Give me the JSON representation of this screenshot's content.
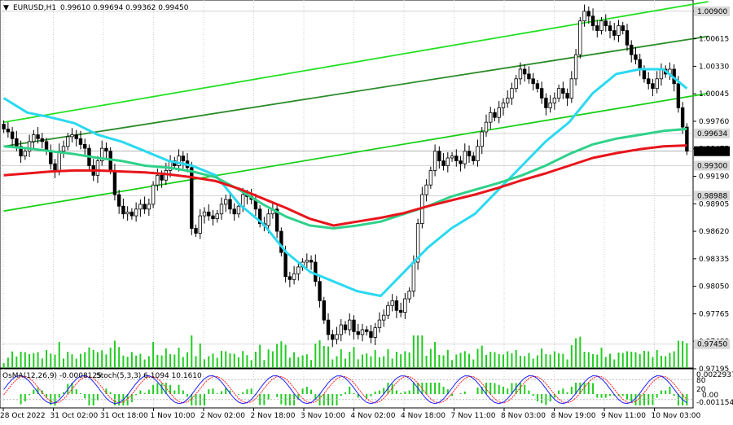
{
  "header": {
    "symbol": "EURUSD,H1",
    "ohlc": "0.99610 0.99694 0.99362 0.99450"
  },
  "indicators": {
    "osma_label": "OsMA(12,26,9) -0.0008125",
    "stoch_label": "Stoch(5,3,3) 6.1094 10.1610",
    "osma_levels": [
      "0.0022937",
      "0.00",
      "-0.001154"
    ],
    "stoch_levels": [
      "80",
      "20"
    ]
  },
  "colors": {
    "candle": "#000000",
    "ema_fast": "#2ad9f0",
    "ema_mid": "#2fd18a",
    "ema_slow": "#e8151b",
    "channel_upper": "#22e022",
    "channel_mid": "#2a8c2a",
    "channel_lower": "#18d018",
    "volume": "#22cc22",
    "stoch_main": "#2020ff",
    "stoch_signal": "#ff2020",
    "price_tag_bg": "#000000",
    "level_tag_bg": "#d8d8d8"
  },
  "chart_data": {
    "type": "candlestick",
    "symbol": "EURUSD",
    "timeframe": "H1",
    "ylim": [
      0.9722,
      1.01
    ],
    "y_ticks": [
      "1.00900",
      "1.00615",
      "1.00330",
      "1.00045",
      "0.99760",
      "0.99475",
      "0.99190",
      "0.98905",
      "0.98620",
      "0.98335",
      "0.98050",
      "0.97765",
      "0.97480",
      "0.97195"
    ],
    "price_tags": [
      {
        "label": "1.00900",
        "value": 1.009,
        "style": "level"
      },
      {
        "label": "0.99634",
        "value": 0.99634,
        "style": "level"
      },
      {
        "label": "0.99450",
        "value": 0.9945,
        "style": "current"
      },
      {
        "label": "0.99300",
        "value": 0.993,
        "style": "level"
      },
      {
        "label": "0.98988",
        "value": 0.98988,
        "style": "level"
      },
      {
        "label": "0.97450",
        "value": 0.9745,
        "style": "level"
      }
    ],
    "x_tick_labels": [
      "28 Oct 2022",
      "31 Oct 02:00",
      "31 Oct 18:00",
      "1 Nov 10:00",
      "2 Nov 02:00",
      "2 Nov 18:00",
      "3 Nov 10:00",
      "4 Nov 02:00",
      "4 Nov 18:00",
      "7 Nov 11:00",
      "8 Nov 03:00",
      "8 Nov 19:00",
      "9 Nov 11:00",
      "10 Nov 03:00"
    ],
    "closes": [
      0.9968,
      0.9965,
      0.9958,
      0.995,
      0.994,
      0.9945,
      0.9955,
      0.9962,
      0.9958,
      0.9955,
      0.9945,
      0.9932,
      0.9925,
      0.9945,
      0.995,
      0.996,
      0.9962,
      0.9958,
      0.9952,
      0.9948,
      0.993,
      0.992,
      0.9935,
      0.9948,
      0.9945,
      0.9925,
      0.99,
      0.9888,
      0.988,
      0.9882,
      0.9878,
      0.9885,
      0.989,
      0.9885,
      0.989,
      0.991,
      0.992,
      0.9915,
      0.9925,
      0.9935,
      0.993,
      0.994,
      0.9935,
      0.9928,
      0.9865,
      0.986,
      0.9878,
      0.9882,
      0.9878,
      0.9875,
      0.988,
      0.989,
      0.9895,
      0.9885,
      0.988,
      0.9888,
      0.99,
      0.9898,
      0.9895,
      0.9885,
      0.987,
      0.9868,
      0.988,
      0.9885,
      0.9862,
      0.984,
      0.9815,
      0.9812,
      0.9818,
      0.9825,
      0.983,
      0.9832,
      0.983,
      0.981,
      0.979,
      0.977,
      0.9755,
      0.975,
      0.9755,
      0.9765,
      0.976,
      0.977,
      0.9758,
      0.9755,
      0.976,
      0.9758,
      0.9752,
      0.9762,
      0.977,
      0.9775,
      0.9785,
      0.979,
      0.978,
      0.9778,
      0.9792,
      0.98,
      0.983,
      0.987,
      0.99,
      0.991,
      0.9925,
      0.9945,
      0.9935,
      0.993,
      0.9938,
      0.994,
      0.9935,
      0.9932,
      0.9945,
      0.994,
      0.9935,
      0.995,
      0.9965,
      0.9975,
      0.9985,
      0.998,
      0.999,
      0.9995,
      1.0,
      1.001,
      1.002,
      1.003,
      1.0025,
      1.002,
      1.0015,
      1.001,
      1.0,
      0.999,
      0.9995,
      1.0,
      1.001,
      1.0005,
      1.0,
      1.002,
      1.0045,
      1.008,
      1.009,
      1.0085,
      1.0075,
      1.007,
      1.008,
      1.0075,
      1.007,
      1.0065,
      1.0075,
      1.007,
      1.0055,
      1.0045,
      1.004,
      1.003,
      1.002,
      1.0015,
      1.001,
      1.002,
      1.003,
      1.0025,
      1.003,
      1.0015,
      0.999,
      0.997,
      0.9945
    ],
    "series": [
      {
        "name": "EMA fast",
        "color_key": "ema_fast",
        "values": [
          1.0,
          0.9985,
          0.998,
          0.9974,
          0.9962,
          0.9955,
          0.9945,
          0.9935,
          0.993,
          0.992,
          0.989,
          0.987,
          0.984,
          0.982,
          0.981,
          0.98,
          0.9795,
          0.982,
          0.9845,
          0.9865,
          0.988,
          0.9905,
          0.993,
          0.9955,
          0.9975,
          1.0005,
          1.0025,
          1.003,
          1.003,
          1.001
        ]
      },
      {
        "name": "EMA mid",
        "color_key": "ema_mid",
        "values": [
          0.995,
          0.9948,
          0.9945,
          0.9942,
          0.9938,
          0.9935,
          0.993,
          0.9928,
          0.9924,
          0.9918,
          0.9905,
          0.989,
          0.9877,
          0.9868,
          0.9865,
          0.9868,
          0.9872,
          0.988,
          0.9888,
          0.9898,
          0.9905,
          0.9912,
          0.992,
          0.993,
          0.9942,
          0.9952,
          0.9958,
          0.9962,
          0.9966,
          0.9968
        ]
      },
      {
        "name": "EMA slow",
        "color_key": "ema_slow",
        "values": [
          0.992,
          0.9922,
          0.9924,
          0.9925,
          0.9925,
          0.9924,
          0.9923,
          0.9921,
          0.9918,
          0.9914,
          0.9906,
          0.9896,
          0.9886,
          0.9875,
          0.9868,
          0.9872,
          0.9876,
          0.9881,
          0.9888,
          0.9894,
          0.99,
          0.9907,
          0.9915,
          0.9922,
          0.993,
          0.9938,
          0.9943,
          0.9947,
          0.995,
          0.9951
        ]
      }
    ],
    "channels": [
      {
        "name": "upper",
        "color_key": "channel_upper",
        "from": [
          0,
          0.9975
        ],
        "to": [
          165,
          1.01
        ]
      },
      {
        "name": "middle",
        "color_key": "channel_mid",
        "from": [
          0,
          0.995
        ],
        "to": [
          165,
          1.0064
        ]
      },
      {
        "name": "lower",
        "color_key": "channel_lower",
        "from": [
          0,
          0.9883
        ],
        "to": [
          165,
          1.0005
        ]
      }
    ]
  }
}
